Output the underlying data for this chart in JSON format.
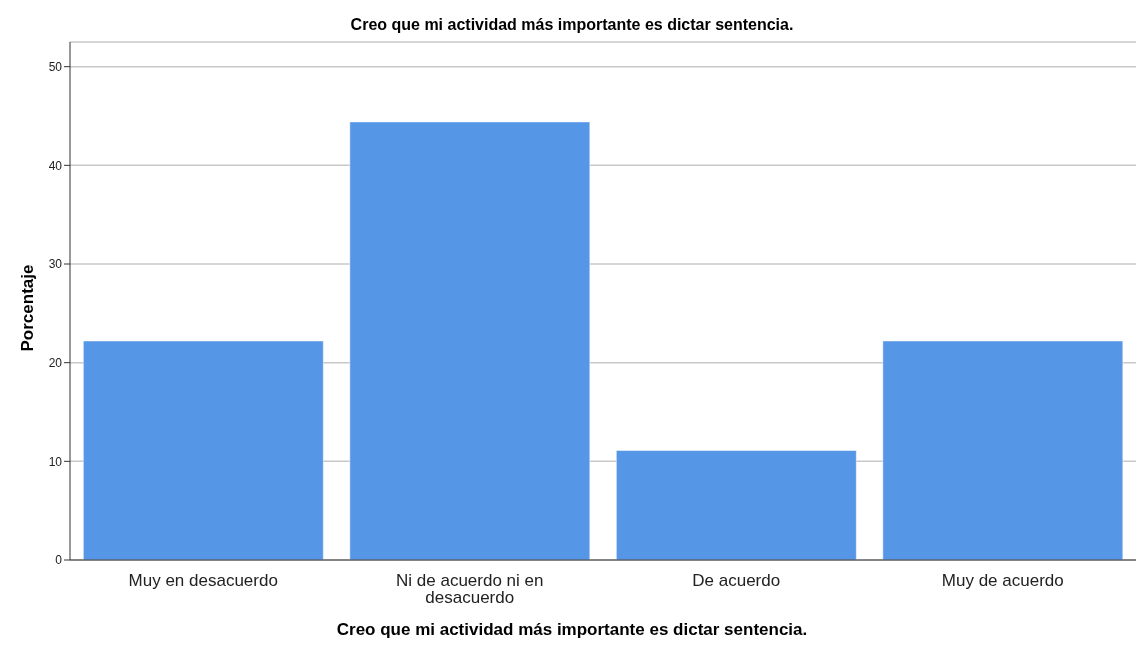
{
  "chart_data": {
    "type": "bar",
    "title": "Creo que mi actividad más importante es dictar sentencia.",
    "xlabel": "Creo que mi actividad más importante es dictar sentencia.",
    "ylabel": "Porcentaje",
    "categories": [
      "Muy en desacuerdo",
      "Ni de acuerdo ni en desacuerdo",
      "De acuerdo",
      "Muy de acuerdo"
    ],
    "values": [
      22.2,
      44.4,
      11.1,
      22.2
    ],
    "color": "#5596e6",
    "ylim": [
      0,
      52.5
    ],
    "yticks": [
      0,
      10,
      20,
      30,
      40,
      50
    ],
    "grid": "y"
  }
}
